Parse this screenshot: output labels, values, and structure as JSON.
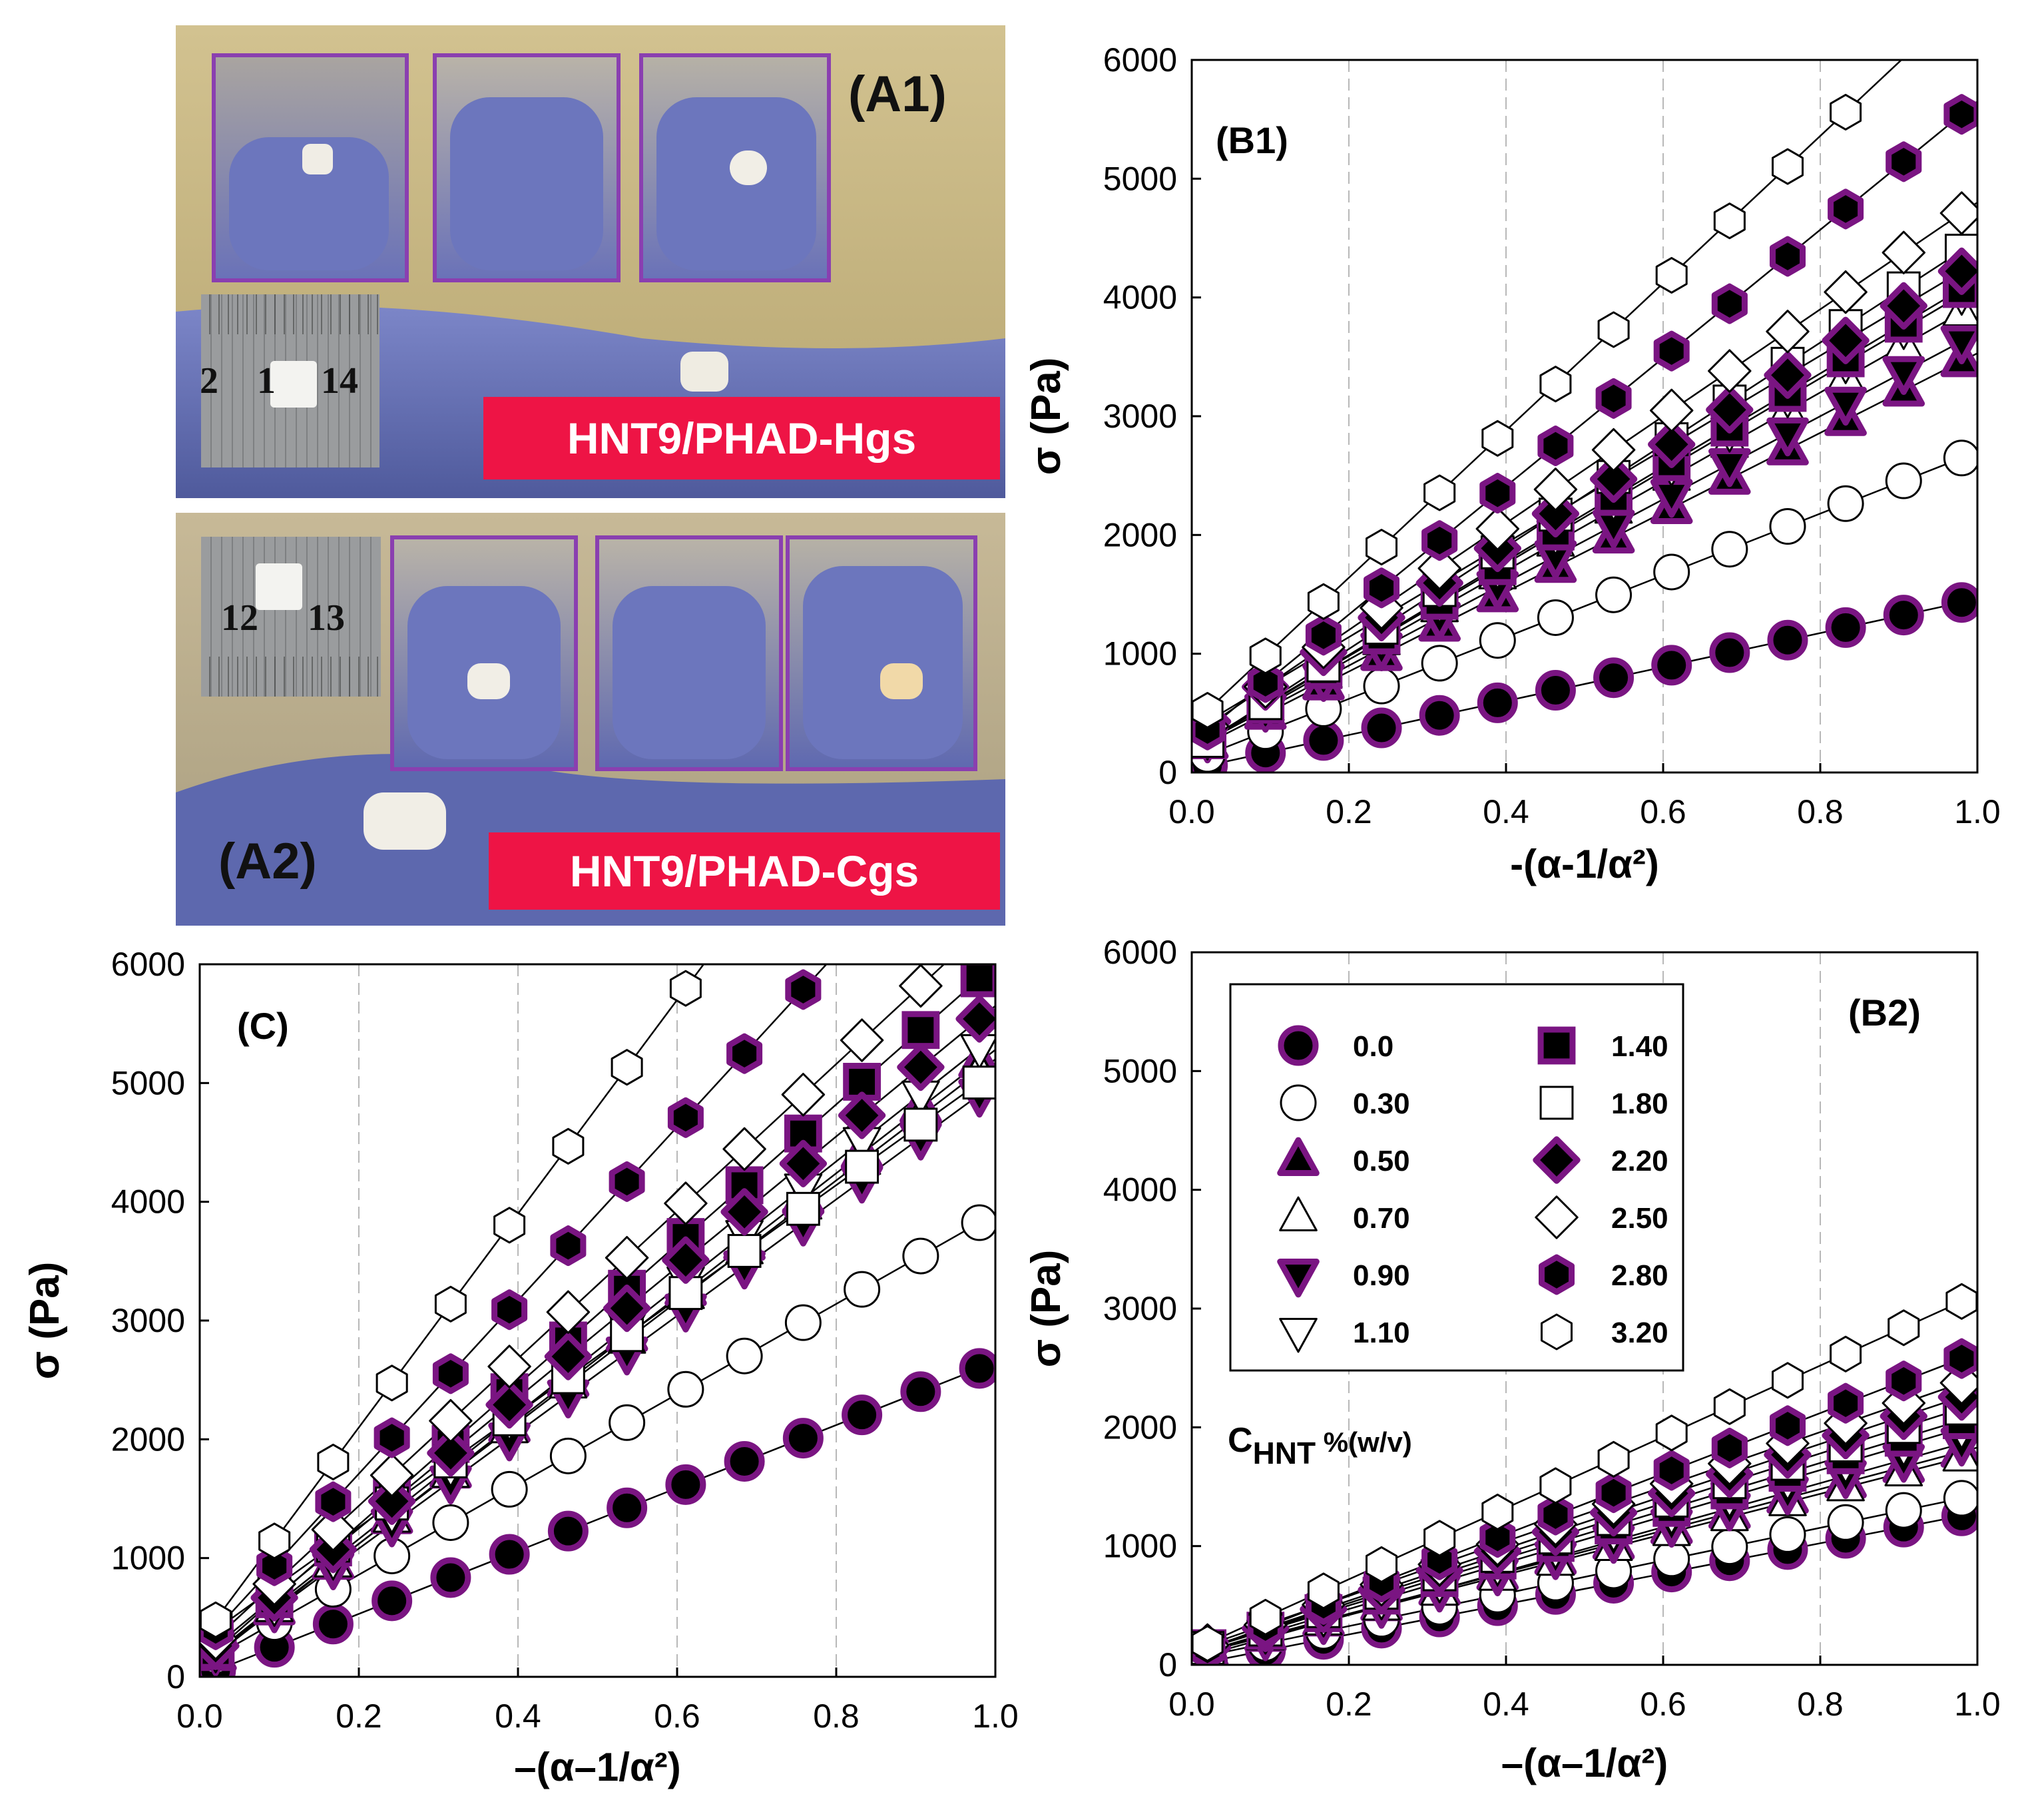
{
  "photos": {
    "a1": {
      "label": "(A1)",
      "caption": "HNT9/PHAD-Hgs",
      "ruler_left": "2",
      "ruler_mid": "1",
      "ruler_right": "14"
    },
    "a2": {
      "label": "(A2)",
      "caption": "HNT9/PHAD-Cgs",
      "ruler_left": "12",
      "ruler_right": "13"
    }
  },
  "colors": {
    "purple": "#7a1582",
    "banner": "#ee1445",
    "frame": "#8a3fb0"
  },
  "legend": {
    "title_main": "C",
    "title_sub": "HNT",
    "title_unit": " %(w/v)",
    "entries": [
      {
        "label": "0.0",
        "marker": "circle-filled"
      },
      {
        "label": "0.30",
        "marker": "circle-open"
      },
      {
        "label": "0.50",
        "marker": "triangle-up-filled"
      },
      {
        "label": "0.70",
        "marker": "triangle-up-open"
      },
      {
        "label": "0.90",
        "marker": "triangle-down-filled"
      },
      {
        "label": "1.10",
        "marker": "triangle-down-open"
      },
      {
        "label": "1.40",
        "marker": "square-filled"
      },
      {
        "label": "1.80",
        "marker": "square-open"
      },
      {
        "label": "2.20",
        "marker": "diamond-filled"
      },
      {
        "label": "2.50",
        "marker": "diamond-open"
      },
      {
        "label": "2.80",
        "marker": "hexagon-filled"
      },
      {
        "label": "3.20",
        "marker": "hexagon-open"
      }
    ]
  },
  "chart_data": [
    {
      "id": "B1",
      "title": "(B1)",
      "type": "scatter",
      "xlabel": "-(α-1/α²)",
      "ylabel": "σ (Pa)",
      "xlim": [
        0,
        1.0
      ],
      "ylim": [
        0,
        6000
      ],
      "xticks": [
        "0.0",
        "0.2",
        "0.4",
        "0.6",
        "0.8",
        "1.0"
      ],
      "yticks": [
        "0",
        "1000",
        "2000",
        "3000",
        "4000",
        "5000",
        "6000"
      ],
      "series": [
        {
          "name": "0.0",
          "slope": 1430,
          "intercept": 30
        },
        {
          "name": "0.30",
          "slope": 2600,
          "intercept": 100
        },
        {
          "name": "0.50",
          "slope": 3350,
          "intercept": 180
        },
        {
          "name": "0.70",
          "slope": 3750,
          "intercept": 200
        },
        {
          "name": "0.90",
          "slope": 3500,
          "intercept": 200
        },
        {
          "name": "1.10",
          "slope": 3900,
          "intercept": 200
        },
        {
          "name": "1.40",
          "slope": 3950,
          "intercept": 200
        },
        {
          "name": "1.80",
          "slope": 4300,
          "intercept": 180
        },
        {
          "name": "2.20",
          "slope": 3950,
          "intercept": 350
        },
        {
          "name": "2.50",
          "slope": 4500,
          "intercept": 300
        },
        {
          "name": "2.80",
          "slope": 5400,
          "intercept": 250
        },
        {
          "name": "3.20",
          "slope": 6200,
          "intercept": 400
        }
      ]
    },
    {
      "id": "C",
      "title": "(C)",
      "type": "scatter",
      "xlabel": "–(α–1/α²)",
      "ylabel": "σ (Pa)",
      "xlim": [
        0,
        1.0
      ],
      "ylim": [
        0,
        6000
      ],
      "xticks": [
        "0.0",
        "0.2",
        "0.4",
        "0.6",
        "0.8",
        "1.0"
      ],
      "yticks": [
        "0",
        "1000",
        "2000",
        "3000",
        "4000",
        "5000",
        "6000"
      ],
      "series": [
        {
          "name": "0.0",
          "slope": 2650,
          "intercept": 0
        },
        {
          "name": "0.30",
          "slope": 3800,
          "intercept": 100
        },
        {
          "name": "0.50",
          "slope": 5200,
          "intercept": 80
        },
        {
          "name": "0.70",
          "slope": 5100,
          "intercept": 100
        },
        {
          "name": "0.90",
          "slope": 4900,
          "intercept": 100
        },
        {
          "name": "1.10",
          "slope": 5300,
          "intercept": 100
        },
        {
          "name": "1.40",
          "slope": 5900,
          "intercept": 100
        },
        {
          "name": "1.80",
          "slope": 4800,
          "intercept": 300
        },
        {
          "name": "2.20",
          "slope": 5500,
          "intercept": 150
        },
        {
          "name": "2.50",
          "slope": 6200,
          "intercept": 200
        },
        {
          "name": "2.80",
          "slope": 7300,
          "intercept": 250
        },
        {
          "name": "3.20",
          "slope": 9000,
          "intercept": 300
        }
      ]
    },
    {
      "id": "B2",
      "title": "(B2)",
      "type": "scatter",
      "xlabel": "–(α–1/α²)",
      "ylabel": "σ (Pa)",
      "xlim": [
        0,
        1.0
      ],
      "ylim": [
        0,
        6000
      ],
      "xticks": [
        "0.0",
        "0.2",
        "0.4",
        "0.6",
        "0.8",
        "1.0"
      ],
      "yticks": [
        "0",
        "1000",
        "2000",
        "3000",
        "4000",
        "5000",
        "6000"
      ],
      "series": [
        {
          "name": "0.0",
          "slope": 1280,
          "intercept": 0
        },
        {
          "name": "0.30",
          "slope": 1380,
          "intercept": 50
        },
        {
          "name": "0.50",
          "slope": 1750,
          "intercept": 80
        },
        {
          "name": "0.70",
          "slope": 1700,
          "intercept": 80
        },
        {
          "name": "0.90",
          "slope": 1850,
          "intercept": 50
        },
        {
          "name": "1.10",
          "slope": 1950,
          "intercept": 80
        },
        {
          "name": "1.40",
          "slope": 2000,
          "intercept": 100
        },
        {
          "name": "1.80",
          "slope": 2100,
          "intercept": 100
        },
        {
          "name": "2.20",
          "slope": 2200,
          "intercept": 100
        },
        {
          "name": "2.50",
          "slope": 2300,
          "intercept": 120
        },
        {
          "name": "2.80",
          "slope": 2550,
          "intercept": 80
        },
        {
          "name": "3.20",
          "slope": 3000,
          "intercept": 120
        }
      ]
    }
  ]
}
